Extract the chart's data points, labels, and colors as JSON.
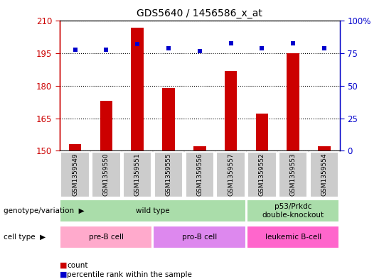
{
  "title": "GDS5640 / 1456586_x_at",
  "samples": [
    "GSM1359549",
    "GSM1359550",
    "GSM1359551",
    "GSM1359555",
    "GSM1359556",
    "GSM1359557",
    "GSM1359552",
    "GSM1359553",
    "GSM1359554"
  ],
  "counts": [
    153,
    173,
    207,
    179,
    152,
    187,
    167,
    195,
    152
  ],
  "percentile_ranks": [
    78,
    78,
    82,
    79,
    77,
    83,
    79,
    83,
    79
  ],
  "ymin": 150,
  "ymax": 210,
  "yticks_left": [
    150,
    165,
    180,
    195,
    210
  ],
  "yticks_right": [
    0,
    25,
    50,
    75,
    100
  ],
  "bar_color": "#cc0000",
  "dot_color": "#0000cc",
  "genotype_groups": [
    {
      "label": "wild type",
      "start": 0,
      "end": 6,
      "color": "#aaddaa"
    },
    {
      "label": "p53/Prkdc\ndouble-knockout",
      "start": 6,
      "end": 9,
      "color": "#aaddaa"
    }
  ],
  "cell_type_groups": [
    {
      "label": "pre-B cell",
      "start": 0,
      "end": 3,
      "color": "#ffaacc"
    },
    {
      "label": "pro-B cell",
      "start": 3,
      "end": 6,
      "color": "#dd88ee"
    },
    {
      "label": "leukemic B-cell",
      "start": 6,
      "end": 9,
      "color": "#ff66cc"
    }
  ],
  "legend_count_label": "count",
  "legend_pct_label": "percentile rank within the sample",
  "xlabel_genotype": "genotype/variation",
  "xlabel_celltype": "cell type",
  "sample_box_color": "#cccccc",
  "bar_color_dark": "#cc0000",
  "tick_color_left": "#cc0000",
  "tick_color_right": "#0000cc"
}
